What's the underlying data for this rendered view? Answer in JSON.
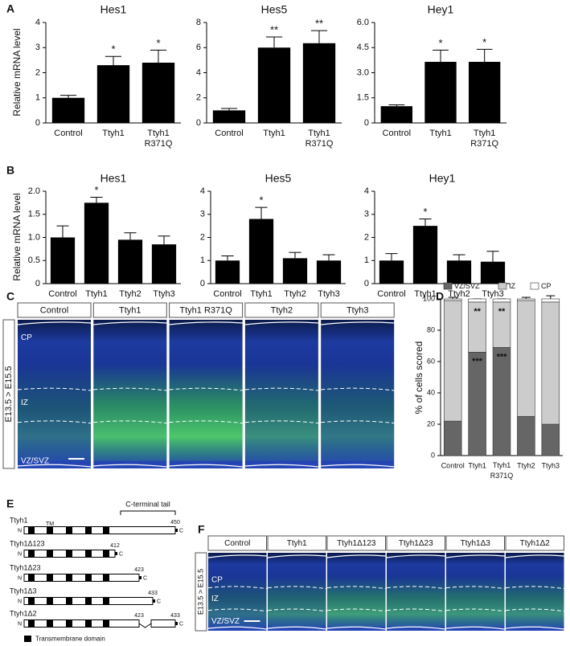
{
  "panel_labels": [
    "A",
    "B",
    "C",
    "D",
    "E",
    "F"
  ],
  "chart_data": [
    {
      "type": "bar",
      "title": "Hes1",
      "ylabel": "Relative mRNA level",
      "categories": [
        "Control",
        "Ttyh1",
        "Ttyh1 R371Q"
      ],
      "values": [
        1.0,
        2.3,
        2.4
      ],
      "errors": [
        0.1,
        0.35,
        0.5
      ],
      "significance": [
        null,
        "*",
        "*"
      ],
      "color": "#000000",
      "ylim": [
        0,
        4
      ],
      "yticks": [
        0,
        1,
        2,
        3,
        4
      ]
    },
    {
      "type": "bar",
      "title": "Hes5",
      "categories": [
        "Control",
        "Ttyh1",
        "Ttyh1 R371Q"
      ],
      "values": [
        1.0,
        6.0,
        6.35
      ],
      "errors": [
        0.15,
        0.85,
        1.0
      ],
      "significance": [
        null,
        "**",
        "**"
      ],
      "color": "#000000",
      "ylim": [
        0,
        8
      ],
      "yticks": [
        0,
        2,
        4,
        6,
        8
      ]
    },
    {
      "type": "bar",
      "title": "Hey1",
      "categories": [
        "Control",
        "Ttyh1",
        "Ttyh1 R371Q"
      ],
      "values": [
        1.0,
        3.65,
        3.65
      ],
      "errors": [
        0.08,
        0.7,
        0.75
      ],
      "significance": [
        null,
        "*",
        "*"
      ],
      "color": "#000000",
      "ylim": [
        0,
        6
      ],
      "yticks": [
        0,
        1.5,
        {
          "value": 3,
          "label": "3.0"
        },
        4.5,
        {
          "value": 6,
          "label": "6.0"
        }
      ]
    },
    {
      "type": "bar",
      "title": "Hes1",
      "ylabel": "Relative mRNA level",
      "categories": [
        "Control",
        "Ttyh1",
        "Ttyh2",
        "Ttyh3"
      ],
      "values": [
        1.0,
        1.75,
        0.95,
        0.85
      ],
      "errors": [
        0.25,
        0.12,
        0.15,
        0.18
      ],
      "significance": [
        null,
        "*",
        null,
        null
      ],
      "color": "#000000",
      "ylim": [
        0,
        2
      ],
      "yticks": [
        0,
        0.5,
        {
          "value": 1,
          "label": "1.0"
        },
        1.5,
        {
          "value": 2,
          "label": "2.0"
        }
      ]
    },
    {
      "type": "bar",
      "title": "Hes5",
      "categories": [
        "Control",
        "Ttyh1",
        "Ttyh2",
        "Ttyh3"
      ],
      "values": [
        1.0,
        2.8,
        1.1,
        1.0
      ],
      "errors": [
        0.2,
        0.5,
        0.25,
        0.25
      ],
      "significance": [
        null,
        "*",
        null,
        null
      ],
      "color": "#000000",
      "ylim": [
        0,
        4
      ],
      "yticks": [
        0,
        1,
        2,
        3,
        4
      ]
    },
    {
      "type": "bar",
      "title": "Hey1",
      "categories": [
        "Control",
        "Ttyh1",
        "Ttyh2",
        "Ttyh3"
      ],
      "values": [
        1.0,
        2.5,
        1.0,
        0.95
      ],
      "errors": [
        0.3,
        0.3,
        0.25,
        0.45
      ],
      "significance": [
        null,
        "*",
        null,
        null
      ],
      "color": "#000000",
      "ylim": [
        0,
        4
      ],
      "yticks": [
        0,
        1,
        2,
        3,
        4
      ]
    },
    {
      "type": "bar",
      "stacked": true,
      "ylabel": "% of cells scored",
      "categories": [
        "Control",
        "Ttyh1",
        "Ttyh1 R371Q",
        "Ttyh2",
        "Ttyh3"
      ],
      "series": [
        {
          "name": "VZ/SVZ",
          "color": "#666666",
          "values": [
            22,
            66,
            69,
            25,
            20
          ],
          "errors": [
            2,
            5,
            2,
            2,
            6
          ],
          "significance": [
            null,
            "***",
            "***",
            null,
            null
          ]
        },
        {
          "name": "IZ",
          "color": "#cccccc",
          "values": [
            77,
            32,
            29,
            74,
            78
          ],
          "errors": [
            2,
            2,
            2,
            2,
            4
          ],
          "significance": [
            null,
            "**",
            "**",
            null,
            null
          ]
        },
        {
          "name": "CP",
          "color": "#ffffff",
          "values": [
            1,
            2,
            2,
            1,
            2
          ]
        }
      ],
      "ylim": [
        0,
        100
      ],
      "yticks": [
        0,
        20,
        40,
        60,
        80,
        100
      ],
      "legend": "top"
    }
  ],
  "images": {
    "C": {
      "side_label": "E13.5 > E15.5",
      "headers": [
        "Control",
        "Ttyh1",
        "Ttyh1 R371Q",
        "Ttyh2",
        "Ttyh3"
      ],
      "layers": [
        "CP",
        "IZ",
        "VZ/SVZ"
      ]
    },
    "F": {
      "side_label": "E13.5 > E15.5",
      "headers": [
        "Control",
        "Ttyh1",
        "Ttyh1Δ123",
        "Ttyh1Δ23",
        "Ttyh1Δ3",
        "Ttyh1Δ2"
      ],
      "layers": [
        "CP",
        "IZ",
        "VZ/SVZ"
      ]
    }
  },
  "diagram": {
    "tm_label": "TM",
    "tail_label": "C-terminal tail",
    "n_label": "N",
    "c_label": "C",
    "legend": "Transmembrane domain",
    "constructs": [
      {
        "name": "Ttyh1",
        "ends": [
          450
        ]
      },
      {
        "name": "Ttyh1Δ123",
        "ends": [
          412
        ]
      },
      {
        "name": "Ttyh1Δ23",
        "ends": [
          423
        ]
      },
      {
        "name": "Ttyh1Δ3",
        "ends": [
          433
        ]
      },
      {
        "name": "Ttyh1Δ2",
        "ends": [
          423,
          433
        ]
      }
    ]
  }
}
